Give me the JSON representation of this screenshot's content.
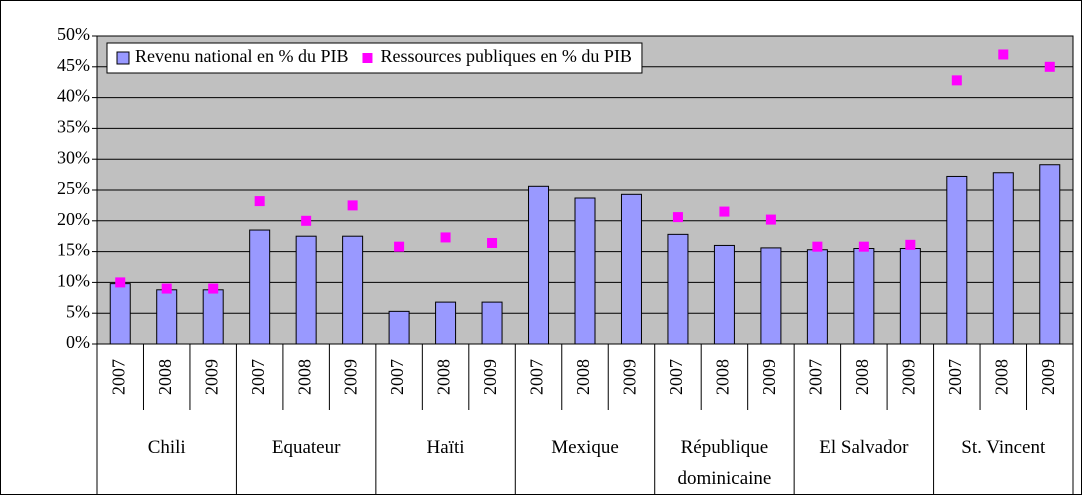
{
  "chart_data": {
    "type": "bar",
    "groups": [
      {
        "name": "Chili",
        "years": [
          "2007",
          "2008",
          "2009"
        ]
      },
      {
        "name": "Equateur",
        "years": [
          "2007",
          "2008",
          "2009"
        ]
      },
      {
        "name": "Haïti",
        "years": [
          "2007",
          "2008",
          "2009"
        ]
      },
      {
        "name": "Mexique",
        "years": [
          "2007",
          "2008",
          "2009"
        ]
      },
      {
        "name": "République dominicaine",
        "years": [
          "2007",
          "2008",
          "2009"
        ]
      },
      {
        "name": "El Salvador",
        "years": [
          "2007",
          "2008",
          "2009"
        ]
      },
      {
        "name": "St. Vincent",
        "years": [
          "2007",
          "2008",
          "2009"
        ]
      }
    ],
    "series": [
      {
        "name": "Revenu national en % du PIB",
        "color": "#9999ff",
        "kind": "bar",
        "values": [
          9.8,
          8.8,
          8.8,
          18.5,
          17.5,
          17.5,
          5.3,
          6.8,
          6.8,
          25.6,
          23.7,
          24.3,
          17.8,
          16,
          15.6,
          15.3,
          15.5,
          15.5,
          27.2,
          27.8,
          29.1
        ]
      },
      {
        "name": "Ressources publiques en % du PIB",
        "color": "#ff00ff",
        "kind": "marker",
        "values": [
          10,
          9,
          9,
          23.2,
          20,
          22.5,
          15.8,
          17.3,
          16.4,
          null,
          null,
          null,
          20.6,
          21.5,
          20.2,
          15.8,
          15.8,
          16.1,
          42.8,
          47,
          45
        ]
      }
    ],
    "ylim": [
      0,
      50
    ],
    "yticks": [
      {
        "value": 0,
        "label": "0%"
      },
      {
        "value": 5,
        "label": "5%"
      },
      {
        "value": 10,
        "label": "10%"
      },
      {
        "value": 15,
        "label": "15%"
      },
      {
        "value": 20,
        "label": "20%"
      },
      {
        "value": 25,
        "label": "25%"
      },
      {
        "value": 30,
        "label": "30%"
      },
      {
        "value": 35,
        "label": "35%"
      },
      {
        "value": 40,
        "label": "40%"
      },
      {
        "value": 45,
        "label": "45%"
      },
      {
        "value": 50,
        "label": "50%"
      }
    ],
    "grid": true,
    "background": "#c0c0c0",
    "legend": "top-left"
  }
}
